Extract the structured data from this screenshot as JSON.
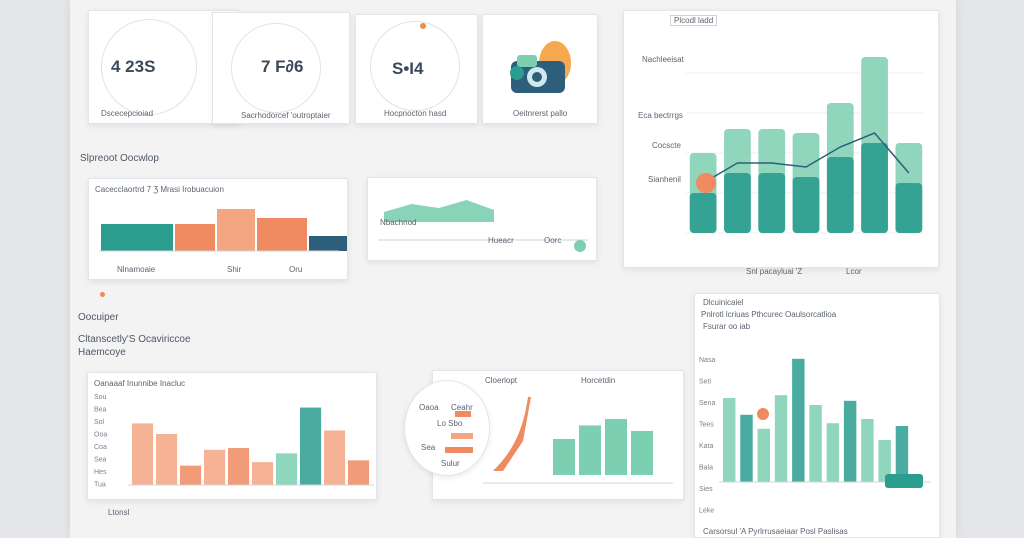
{
  "kpis": [
    {
      "value": "4 23S",
      "label": "Dscecepcioiad"
    },
    {
      "value": "7 F∂6",
      "label": "Sacrhodorcef 'outroptaier"
    },
    {
      "value": "S•Ɩ4",
      "label": "Hocpnocton hasd"
    },
    {
      "value": "",
      "label": "Oeitnrerst pallo"
    }
  ],
  "sections": {
    "overview": "Slpreoot Oocwlop",
    "sub_title": "Oocuiper",
    "sub_line1": "Cltanscetly'S Ocaviriccoe",
    "sub_line2": "Haemcoye"
  },
  "colors": {
    "teal": "#2a9d8f",
    "mint": "#7ccfb0",
    "orange": "#f08a60",
    "salmon": "#f4a582",
    "navy": "#2e5f7a"
  },
  "charts": {
    "main": {
      "header": "Plcodl ladd",
      "left_labels": [
        "Nachleeisat",
        "Eca bectrrgs",
        "Cocscte",
        "Sianhenil"
      ],
      "caption": "Snl pacayluai 'Z",
      "caption2": "Lcor",
      "chart_data": {
        "type": "bar",
        "categories": [
          "c1",
          "c2",
          "c3",
          "c4",
          "c5",
          "c6",
          "c7"
        ],
        "series": [
          {
            "values": [
              40,
              52,
              52,
              50,
              65,
              88,
              45
            ]
          },
          {
            "values": [
              20,
              30,
              30,
              28,
              38,
              45,
              25
            ]
          }
        ],
        "ylim": [
          0,
          100
        ]
      }
    },
    "mid_left": {
      "title": "Cacecclaortrd 7 Ʒ Mrasi Irobuacuion",
      "axis_labels": [
        "Nlnamoaie",
        "Shir",
        "Oru"
      ],
      "chart_data": {
        "type": "bar",
        "categories": [
          "a",
          "b",
          "c",
          "d",
          "e"
        ],
        "series": [
          {
            "name": "",
            "values": [
              18,
              18,
              28,
              22,
              10
            ]
          }
        ],
        "ylim": [
          0,
          40
        ]
      }
    },
    "mid_center": {
      "labels": [
        "Nbachnod",
        "Hueacr",
        "Oorc"
      ],
      "chart_data": {
        "type": "area",
        "x": [
          0,
          1,
          2,
          3,
          4
        ],
        "y": [
          10,
          18,
          14,
          22,
          12
        ],
        "ylim": [
          0,
          30
        ]
      }
    },
    "bottom_left": {
      "title": "Oanaaaf Inunnibe Inacluc",
      "y_ticks": [
        "Sou",
        "Bea",
        "Sol",
        "Ooa",
        "Coa",
        "Sea",
        "Hes",
        "Tua"
      ],
      "footer": "Ltonsl",
      "chart_data": {
        "type": "bar",
        "categories": [
          "b1",
          "b2",
          "b3",
          "b4",
          "b5",
          "b6",
          "b7",
          "b8",
          "b9",
          "b10"
        ],
        "values": [
          70,
          58,
          22,
          40,
          42,
          26,
          36,
          88,
          62,
          28
        ],
        "ylim": [
          0,
          100
        ]
      }
    },
    "bottom_center": {
      "labels": [
        "Cloerlopt",
        "Horcetdin"
      ],
      "lens_labels": [
        "Oaoa",
        "Ceahr",
        "Lo Sbo",
        "Sea",
        "Sulur"
      ],
      "chart_data": {
        "type": "bar",
        "categories": [
          "d1",
          "d2",
          "d3",
          "d4"
        ],
        "values": [
          45,
          62,
          70,
          55
        ],
        "ylim": [
          0,
          100
        ]
      }
    },
    "right_bottom": {
      "top_label": "Dlcuinicaiel",
      "title": "Pnlrotl lcriuas Pthcurec Oaulsorcatlioa",
      "subtitle": "Fsurar oo iab",
      "y_ticks": [
        "Nasa",
        "Seti",
        "Sena",
        "Tees",
        "Kata",
        "Bala",
        "Sies",
        "Leke"
      ],
      "footer": "Carsorsul 'A Pyrlrrusaeiaar Posl Paslisas",
      "chart_data": {
        "type": "bar",
        "categories": [
          "r1",
          "r2",
          "r3",
          "r4",
          "r5",
          "r6",
          "r7",
          "r8",
          "r9",
          "r10",
          "r11"
        ],
        "values": [
          60,
          48,
          38,
          62,
          88,
          55,
          42,
          58,
          45,
          30,
          40
        ],
        "ylim": [
          0,
          100
        ]
      }
    }
  }
}
